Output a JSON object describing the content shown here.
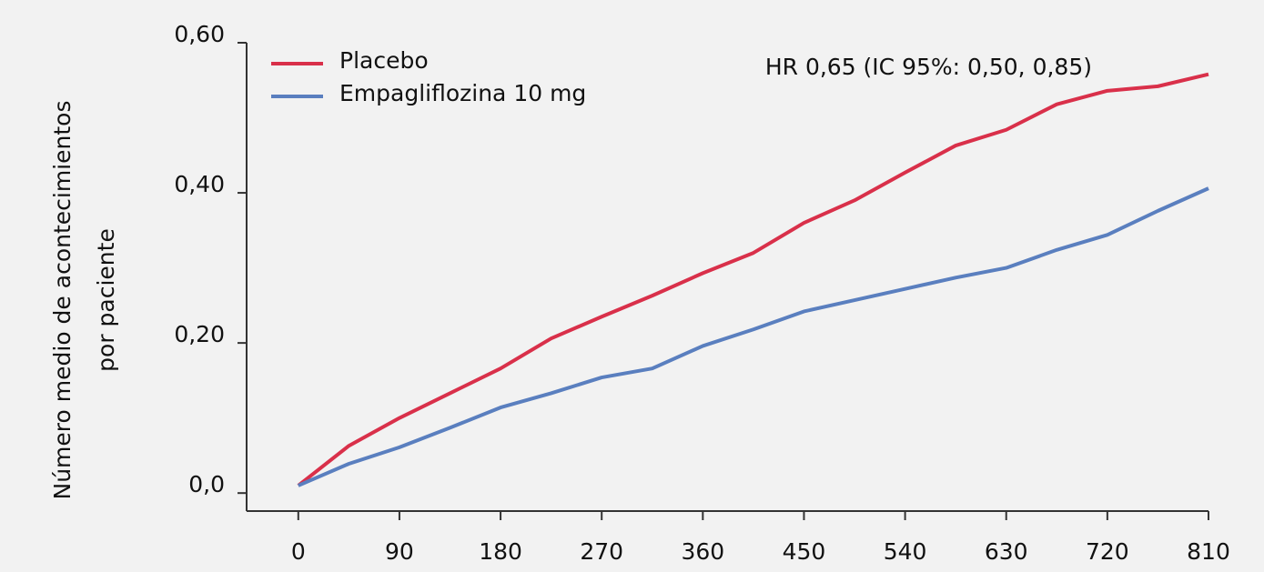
{
  "chart_data": {
    "type": "line",
    "ylabel": [
      "Número medio de acontecimientos",
      "por paciente"
    ],
    "annotation": "HR 0,65 (IC 95%: 0,50, 0,85)",
    "x": [
      0,
      45,
      90,
      135,
      180,
      225,
      270,
      315,
      360,
      405,
      450,
      495,
      540,
      585,
      630,
      675,
      720,
      765,
      810
    ],
    "series": [
      {
        "name": "Placebo",
        "color": "#d9304a",
        "values": [
          0.01,
          0.063,
          0.1,
          0.133,
          0.166,
          0.206,
          0.235,
          0.263,
          0.293,
          0.32,
          0.36,
          0.39,
          0.427,
          0.463,
          0.484,
          0.518,
          0.536,
          0.542,
          0.558
        ]
      },
      {
        "name": "Empagliflozina 10 mg",
        "color": "#5a7fbf",
        "values": [
          0.01,
          0.039,
          0.061,
          0.087,
          0.114,
          0.133,
          0.154,
          0.166,
          0.196,
          0.218,
          0.242,
          0.257,
          0.272,
          0.287,
          0.3,
          0.324,
          0.344,
          0.376,
          0.406
        ]
      }
    ],
    "xlim": [
      -46,
      810
    ],
    "xticks": [
      0,
      90,
      180,
      270,
      360,
      450,
      540,
      630,
      720,
      810
    ],
    "ylim": [
      -0.024,
      0.6
    ],
    "yticks": [
      {
        "value": 0,
        "label": "0,0"
      },
      {
        "value": 0.2,
        "label": "0,20"
      },
      {
        "value": 0.4,
        "label": "0,40"
      },
      {
        "value": 0.6,
        "label": "0,60"
      }
    ],
    "legend": "upper left"
  }
}
